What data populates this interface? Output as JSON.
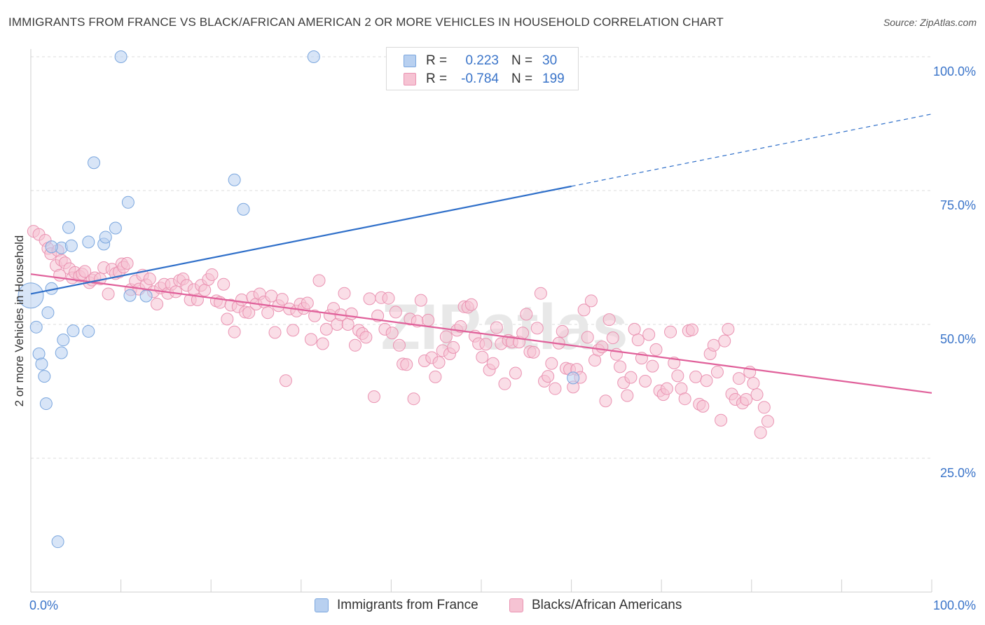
{
  "title": "IMMIGRANTS FROM FRANCE VS BLACK/AFRICAN AMERICAN 2 OR MORE VEHICLES IN HOUSEHOLD CORRELATION CHART",
  "source": "Source: ZipAtlas.com",
  "watermark": "ZIPatlas",
  "legend_stats": {
    "blue": {
      "r_label": "R =",
      "r_value": "0.223",
      "n_label": "N =",
      "n_value": "30"
    },
    "pink": {
      "r_label": "R =",
      "r_value": "-0.784",
      "n_label": "N =",
      "n_value": "199"
    }
  },
  "colors": {
    "blue_fill": "#b8d0f0",
    "blue_stroke": "#7aa6de",
    "blue_line": "#2f6fc9",
    "pink_fill": "#f6c3d3",
    "pink_stroke": "#ea93b2",
    "pink_line": "#e0609a",
    "grid": "#dddddd",
    "axis_tick_label": "#3a74c9"
  },
  "chart_data": {
    "type": "scatter",
    "title": "IMMIGRANTS FROM FRANCE VS BLACK/AFRICAN AMERICAN 2 OR MORE VEHICLES IN HOUSEHOLD CORRELATION CHART",
    "xlabel": "",
    "ylabel": "2 or more Vehicles in Household",
    "xlim": [
      0,
      100
    ],
    "ylim": [
      0,
      105
    ],
    "x_tick_labels": [
      "0.0%",
      "100.0%"
    ],
    "y_ticks": [
      25,
      50,
      75,
      100
    ],
    "y_tick_labels": [
      "25.0%",
      "50.0%",
      "75.0%",
      "100.0%"
    ],
    "grid": true,
    "legend_position": "bottom",
    "series": [
      {
        "name": "Immigrants from France",
        "color": "#b8d0f0",
        "points": [
          [
            0.0,
            55.4
          ],
          [
            0.6,
            49.5
          ],
          [
            0.9,
            44.5
          ],
          [
            1.2,
            42.6
          ],
          [
            1.5,
            40.3
          ],
          [
            1.7,
            35.2
          ],
          [
            1.9,
            52.2
          ],
          [
            2.3,
            56.7
          ],
          [
            3.0,
            9.4
          ],
          [
            3.4,
            44.7
          ],
          [
            3.6,
            47.1
          ],
          [
            3.4,
            64.3
          ],
          [
            2.3,
            64.5
          ],
          [
            4.2,
            68.1
          ],
          [
            4.5,
            64.7
          ],
          [
            4.7,
            48.8
          ],
          [
            6.4,
            48.7
          ],
          [
            6.4,
            65.4
          ],
          [
            7.0,
            80.2
          ],
          [
            8.1,
            65.0
          ],
          [
            8.3,
            66.3
          ],
          [
            9.4,
            68.0
          ],
          [
            10.0,
            100.0
          ],
          [
            10.8,
            72.8
          ],
          [
            11.0,
            55.4
          ],
          [
            12.8,
            55.3
          ],
          [
            22.6,
            77.0
          ],
          [
            23.6,
            71.5
          ],
          [
            31.4,
            100.0
          ],
          [
            60.2,
            40.0
          ]
        ],
        "trend": {
          "x": [
            0,
            60
          ],
          "y": [
            55.7,
            75.8
          ],
          "dashed_to": {
            "x": 100,
            "y": 89.3
          }
        }
      },
      {
        "name": "Blacks/African Americans",
        "color": "#f6c3d3",
        "points": [
          [
            0.3,
            67.4
          ],
          [
            0.9,
            66.8
          ],
          [
            1.6,
            65.7
          ],
          [
            1.9,
            64.2
          ],
          [
            2.2,
            63.2
          ],
          [
            2.8,
            61.0
          ],
          [
            3.0,
            63.8
          ],
          [
            3.2,
            59.2
          ],
          [
            3.4,
            62.0
          ],
          [
            3.8,
            61.5
          ],
          [
            4.3,
            60.4
          ],
          [
            4.6,
            58.7
          ],
          [
            4.9,
            59.7
          ],
          [
            5.4,
            59.0
          ],
          [
            5.7,
            59.4
          ],
          [
            6.0,
            59.9
          ],
          [
            6.5,
            57.8
          ],
          [
            6.8,
            58.3
          ],
          [
            7.1,
            58.7
          ],
          [
            7.7,
            58.5
          ],
          [
            8.1,
            60.6
          ],
          [
            8.6,
            55.7
          ],
          [
            9.0,
            60.3
          ],
          [
            9.4,
            59.5
          ],
          [
            9.8,
            59.8
          ],
          [
            10.1,
            61.3
          ],
          [
            10.3,
            60.7
          ],
          [
            10.7,
            61.4
          ],
          [
            11.1,
            56.5
          ],
          [
            11.6,
            58.1
          ],
          [
            12.0,
            56.6
          ],
          [
            12.4,
            59.2
          ],
          [
            12.8,
            57.4
          ],
          [
            13.2,
            58.5
          ],
          [
            13.6,
            56.1
          ],
          [
            14.0,
            53.8
          ],
          [
            14.4,
            56.8
          ],
          [
            14.8,
            57.5
          ],
          [
            15.2,
            55.8
          ],
          [
            15.6,
            57.5
          ],
          [
            16.1,
            56.1
          ],
          [
            16.5,
            58.2
          ],
          [
            16.9,
            58.5
          ],
          [
            17.3,
            57.3
          ],
          [
            17.7,
            54.6
          ],
          [
            18.1,
            56.5
          ],
          [
            18.5,
            54.6
          ],
          [
            18.9,
            57.3
          ],
          [
            19.3,
            56.4
          ],
          [
            19.7,
            58.4
          ],
          [
            20.1,
            59.3
          ],
          [
            20.6,
            54.4
          ],
          [
            21.0,
            54.1
          ],
          [
            21.4,
            57.5
          ],
          [
            21.8,
            51.0
          ],
          [
            22.2,
            53.6
          ],
          [
            22.6,
            48.6
          ],
          [
            23.0,
            53.3
          ],
          [
            23.4,
            54.6
          ],
          [
            23.8,
            52.3
          ],
          [
            24.2,
            52.2
          ],
          [
            24.6,
            55.1
          ],
          [
            25.0,
            53.8
          ],
          [
            25.4,
            55.7
          ],
          [
            25.9,
            54.2
          ],
          [
            26.3,
            52.2
          ],
          [
            26.7,
            55.3
          ],
          [
            27.1,
            48.5
          ],
          [
            27.5,
            53.5
          ],
          [
            27.9,
            54.7
          ],
          [
            28.3,
            39.5
          ],
          [
            28.7,
            52.9
          ],
          [
            29.1,
            48.9
          ],
          [
            29.5,
            52.5
          ],
          [
            29.9,
            53.8
          ],
          [
            30.3,
            53.0
          ],
          [
            30.7,
            54.0
          ],
          [
            31.1,
            47.2
          ],
          [
            31.5,
            51.6
          ],
          [
            32.0,
            58.2
          ],
          [
            32.4,
            46.4
          ],
          [
            32.8,
            49.1
          ],
          [
            33.2,
            51.7
          ],
          [
            33.6,
            53.0
          ],
          [
            34.0,
            50.0
          ],
          [
            34.4,
            51.8
          ],
          [
            34.8,
            55.8
          ],
          [
            35.2,
            50.0
          ],
          [
            35.6,
            52.0
          ],
          [
            36.0,
            46.1
          ],
          [
            36.4,
            48.9
          ],
          [
            36.8,
            48.3
          ],
          [
            37.2,
            47.6
          ],
          [
            37.6,
            54.8
          ],
          [
            38.1,
            36.5
          ],
          [
            38.5,
            51.6
          ],
          [
            38.9,
            55.0
          ],
          [
            39.3,
            49.1
          ],
          [
            39.7,
            54.9
          ],
          [
            40.1,
            48.4
          ],
          [
            40.5,
            52.3
          ],
          [
            40.9,
            46.1
          ],
          [
            41.3,
            42.6
          ],
          [
            41.7,
            42.5
          ],
          [
            42.1,
            51.0
          ],
          [
            42.5,
            36.1
          ],
          [
            42.9,
            50.6
          ],
          [
            43.3,
            54.5
          ],
          [
            43.7,
            43.2
          ],
          [
            44.1,
            50.8
          ],
          [
            44.5,
            43.8
          ],
          [
            44.9,
            40.2
          ],
          [
            45.3,
            42.9
          ],
          [
            45.7,
            45.1
          ],
          [
            46.1,
            47.7
          ],
          [
            46.5,
            44.5
          ],
          [
            46.9,
            45.7
          ],
          [
            47.3,
            48.9
          ],
          [
            47.7,
            49.6
          ],
          [
            48.1,
            53.3
          ],
          [
            48.5,
            53.2
          ],
          [
            48.9,
            53.7
          ],
          [
            49.3,
            47.8
          ],
          [
            49.7,
            46.4
          ],
          [
            50.1,
            43.9
          ],
          [
            50.5,
            46.3
          ],
          [
            50.9,
            41.5
          ],
          [
            51.3,
            42.7
          ],
          [
            51.7,
            49.4
          ],
          [
            52.2,
            46.4
          ],
          [
            52.6,
            38.9
          ],
          [
            53.0,
            47.0
          ],
          [
            53.4,
            46.7
          ],
          [
            53.8,
            40.9
          ],
          [
            54.2,
            46.7
          ],
          [
            54.6,
            48.4
          ],
          [
            55.0,
            51.9
          ],
          [
            55.4,
            44.9
          ],
          [
            55.8,
            44.8
          ],
          [
            56.2,
            49.3
          ],
          [
            56.6,
            55.8
          ],
          [
            57.0,
            39.4
          ],
          [
            57.4,
            40.3
          ],
          [
            57.8,
            42.7
          ],
          [
            58.2,
            38.0
          ],
          [
            58.6,
            46.5
          ],
          [
            59.0,
            48.7
          ],
          [
            59.4,
            41.8
          ],
          [
            59.8,
            41.6
          ],
          [
            60.2,
            38.3
          ],
          [
            60.6,
            41.6
          ],
          [
            61.0,
            40.1
          ],
          [
            61.4,
            52.7
          ],
          [
            61.8,
            47.6
          ],
          [
            62.2,
            54.4
          ],
          [
            62.6,
            43.3
          ],
          [
            63.0,
            45.2
          ],
          [
            63.4,
            45.8
          ],
          [
            63.8,
            35.7
          ],
          [
            64.2,
            50.9
          ],
          [
            64.6,
            47.5
          ],
          [
            65.0,
            44.4
          ],
          [
            65.4,
            42.1
          ],
          [
            65.8,
            39.1
          ],
          [
            66.2,
            36.7
          ],
          [
            66.6,
            40.1
          ],
          [
            67.0,
            49.1
          ],
          [
            67.4,
            47.1
          ],
          [
            67.8,
            43.7
          ],
          [
            68.2,
            39.4
          ],
          [
            68.6,
            48.1
          ],
          [
            69.0,
            42.2
          ],
          [
            69.4,
            45.3
          ],
          [
            69.8,
            37.6
          ],
          [
            70.2,
            36.9
          ],
          [
            70.6,
            38.0
          ],
          [
            71.0,
            48.6
          ],
          [
            71.4,
            42.8
          ],
          [
            71.8,
            40.4
          ],
          [
            72.2,
            38.0
          ],
          [
            72.6,
            36.1
          ],
          [
            73.0,
            48.8
          ],
          [
            73.4,
            49.0
          ],
          [
            73.8,
            40.2
          ],
          [
            74.2,
            35.1
          ],
          [
            74.6,
            34.7
          ],
          [
            75.0,
            39.5
          ],
          [
            75.4,
            44.5
          ],
          [
            75.8,
            46.1
          ],
          [
            76.2,
            41.1
          ],
          [
            76.6,
            32.1
          ],
          [
            77.0,
            46.9
          ],
          [
            77.4,
            49.1
          ],
          [
            77.8,
            37.0
          ],
          [
            78.2,
            36.0
          ],
          [
            78.6,
            39.9
          ],
          [
            79.0,
            35.3
          ],
          [
            79.4,
            36.0
          ],
          [
            79.8,
            41.1
          ],
          [
            80.2,
            39.0
          ],
          [
            80.6,
            36.9
          ],
          [
            81.0,
            29.8
          ],
          [
            81.4,
            34.5
          ],
          [
            81.8,
            31.9
          ]
        ],
        "trend": {
          "x": [
            0,
            100
          ],
          "y": [
            59.4,
            37.2
          ]
        }
      }
    ]
  }
}
